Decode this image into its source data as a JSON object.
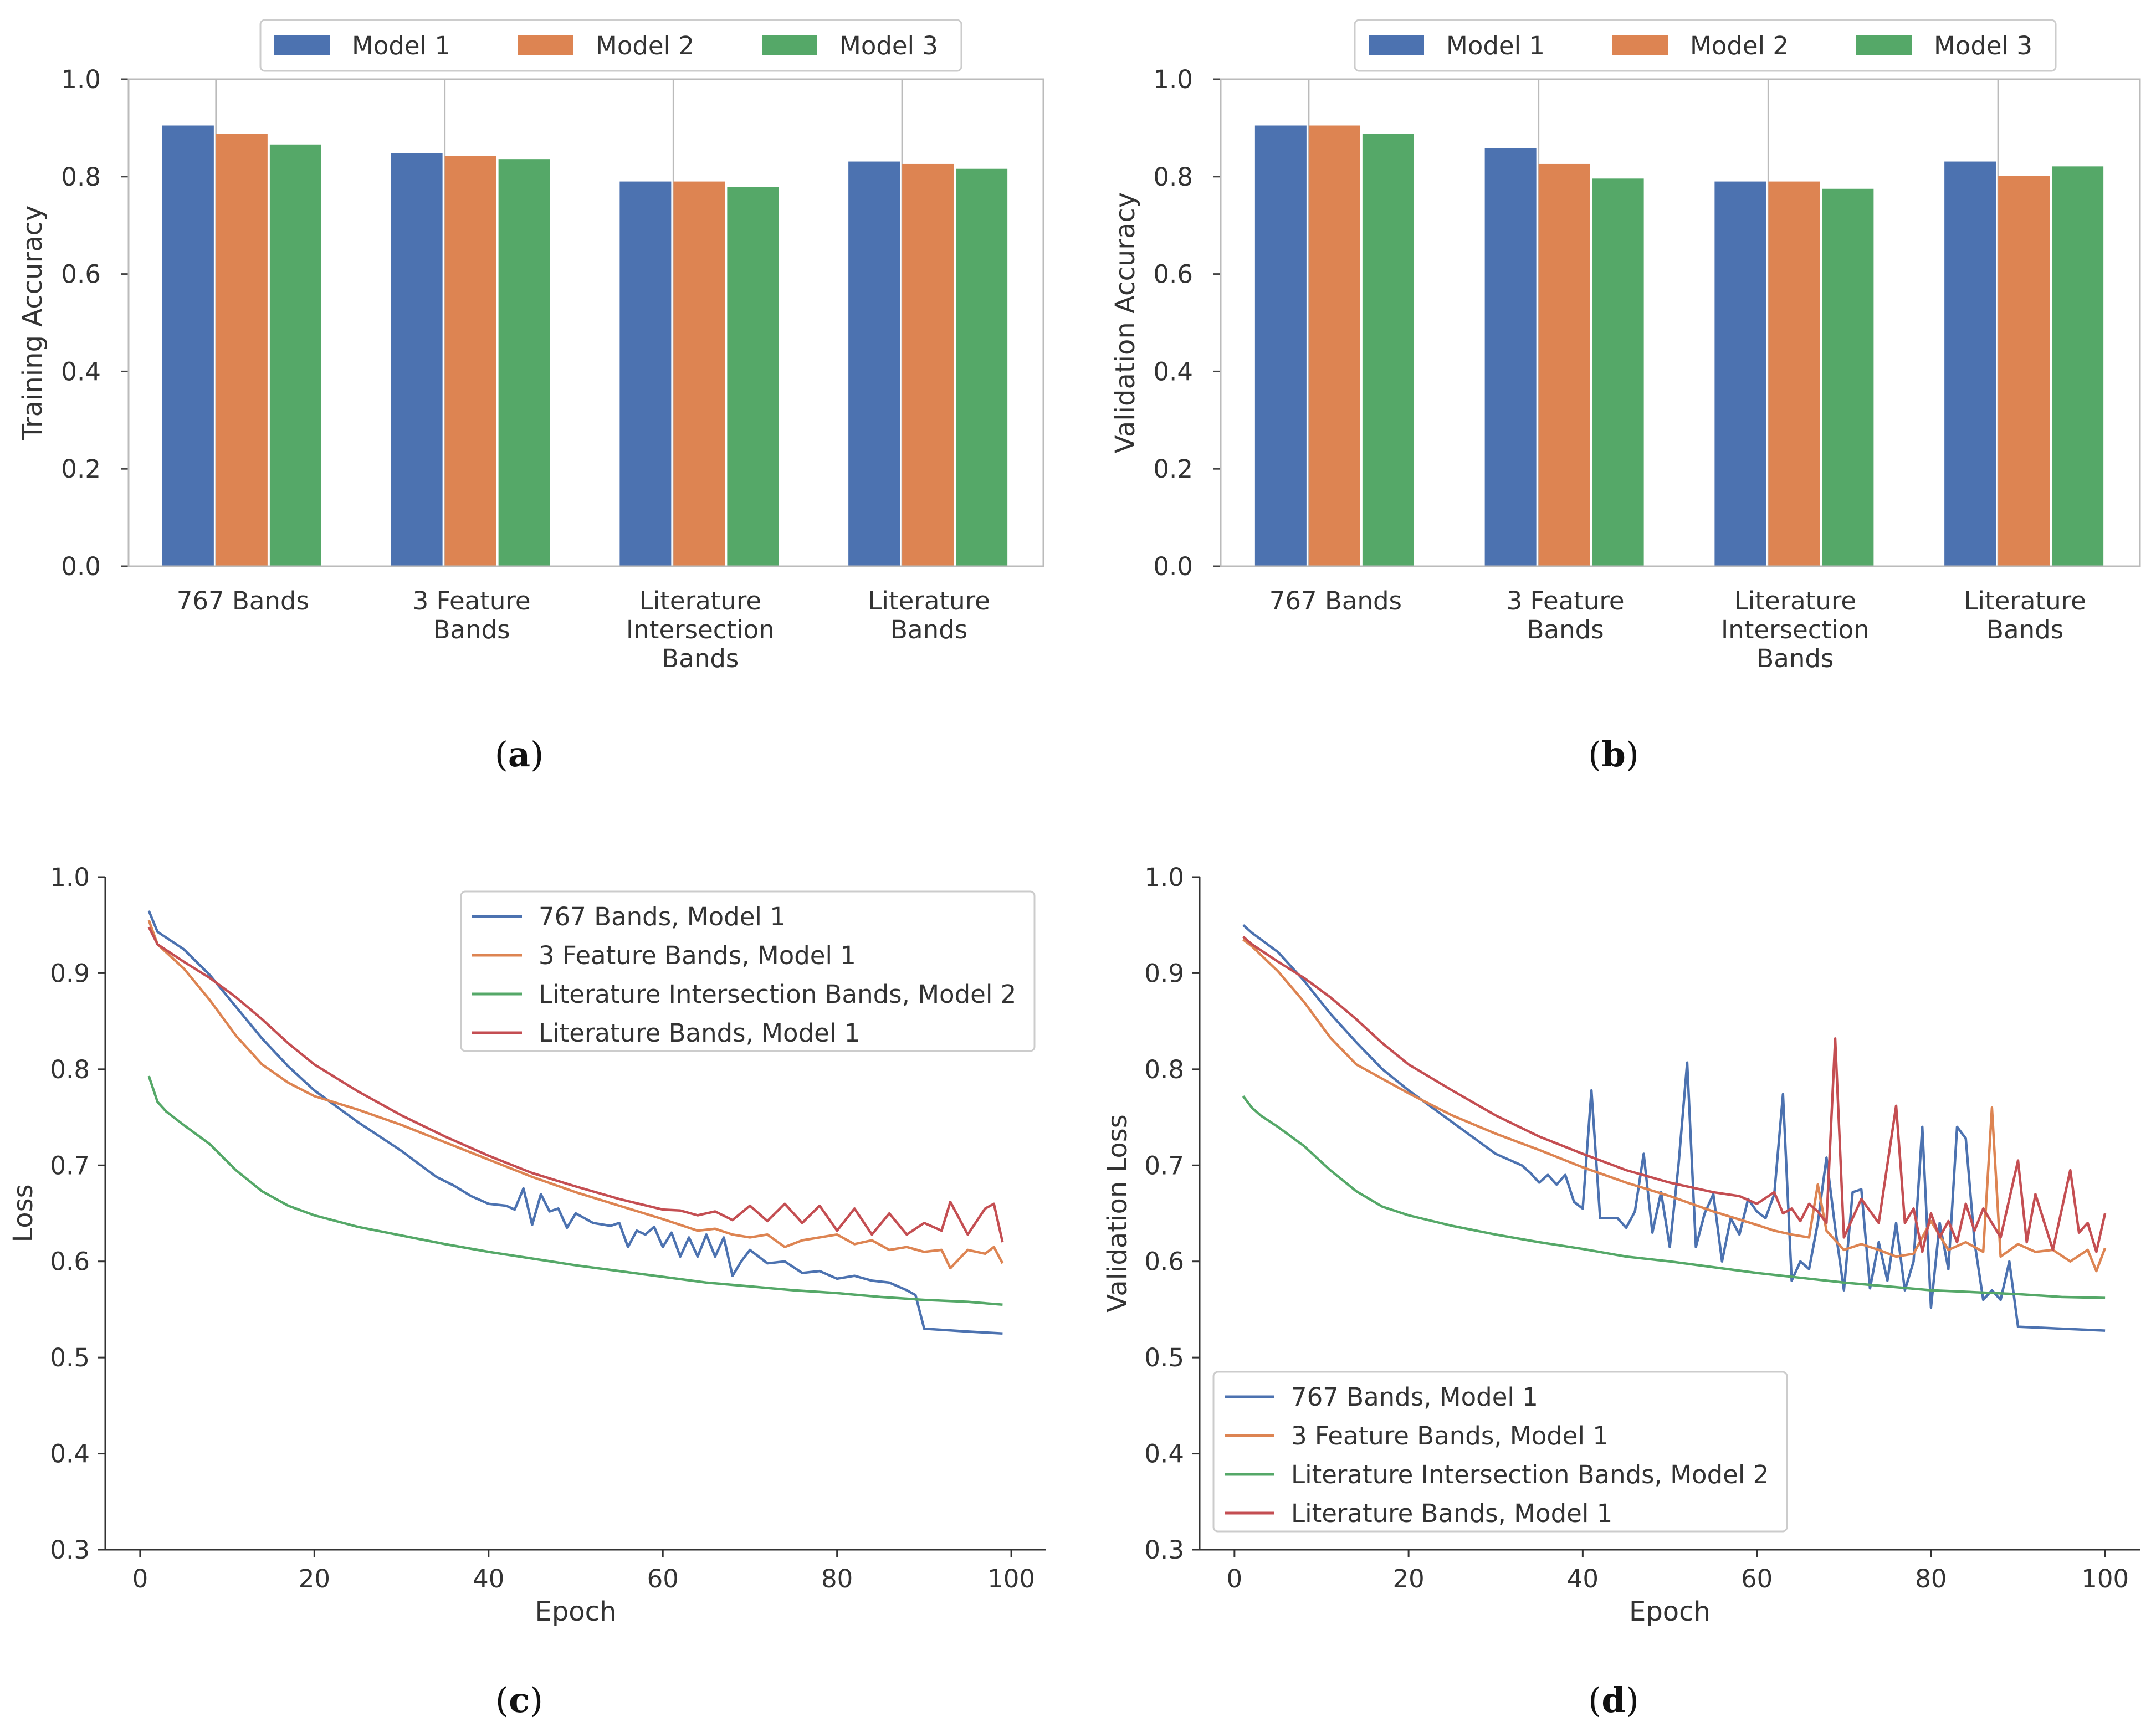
{
  "chart_data": [
    {
      "id": "a",
      "type": "bar",
      "caption_letter": "a",
      "categories": [
        [
          "767 Bands"
        ],
        [
          "3 Feature",
          "Bands"
        ],
        [
          "Literature",
          "Intersection",
          "Bands"
        ],
        [
          "Literature",
          "Bands"
        ]
      ],
      "series": [
        {
          "name": "Model 1",
          "color": "#4c72b0",
          "values": [
            0.905,
            0.848,
            0.79,
            0.831
          ]
        },
        {
          "name": "Model 2",
          "color": "#dd8452",
          "values": [
            0.888,
            0.843,
            0.79,
            0.826
          ]
        },
        {
          "name": "Model 3",
          "color": "#55a868",
          "values": [
            0.866,
            0.836,
            0.779,
            0.816
          ]
        }
      ],
      "ylabel": "Training Accuracy",
      "xlabel": "",
      "ylim": [
        0,
        1.0
      ],
      "yticks": [
        "0.0",
        "0.2",
        "0.4",
        "0.6",
        "0.8",
        "1.0"
      ],
      "legend": "top-center"
    },
    {
      "id": "b",
      "type": "bar",
      "caption_letter": "b",
      "categories": [
        [
          "767 Bands"
        ],
        [
          "3 Feature",
          "Bands"
        ],
        [
          "Literature",
          "Intersection",
          "Bands"
        ],
        [
          "Literature",
          "Bands"
        ]
      ],
      "series": [
        {
          "name": "Model 1",
          "color": "#4c72b0",
          "values": [
            0.905,
            0.858,
            0.79,
            0.831
          ]
        },
        {
          "name": "Model 2",
          "color": "#dd8452",
          "values": [
            0.905,
            0.826,
            0.79,
            0.801
          ]
        },
        {
          "name": "Model 3",
          "color": "#55a868",
          "values": [
            0.888,
            0.796,
            0.775,
            0.821
          ]
        }
      ],
      "ylabel": "Validation Accuracy",
      "xlabel": "",
      "ylim": [
        0,
        1.0
      ],
      "yticks": [
        "0.0",
        "0.2",
        "0.4",
        "0.6",
        "0.8",
        "1.0"
      ],
      "legend": "top-center"
    },
    {
      "id": "c",
      "type": "line",
      "caption_letter": "c",
      "xlabel": "Epoch",
      "ylabel": "Loss",
      "xlim": [
        -4,
        104
      ],
      "ylim": [
        0.3,
        1.0
      ],
      "xticks": [
        0,
        20,
        40,
        60,
        80,
        100
      ],
      "yticks": [
        "0.3",
        "0.4",
        "0.5",
        "0.6",
        "0.7",
        "0.8",
        "0.9",
        "1.0"
      ],
      "legend": "top-right",
      "series": [
        {
          "name": "767 Bands, Model 1",
          "color": "#4c72b0",
          "x": [
            1,
            2,
            5,
            8,
            11,
            14,
            17,
            20,
            25,
            30,
            34,
            36,
            38,
            40,
            42,
            43,
            44,
            45,
            46,
            47,
            48,
            49,
            50,
            52,
            54,
            55,
            56,
            57,
            58,
            59,
            60,
            61,
            62,
            63,
            64,
            65,
            66,
            67,
            68,
            69,
            70,
            72,
            74,
            76,
            78,
            80,
            82,
            84,
            86,
            88,
            89,
            90,
            95,
            99
          ],
          "y": [
            0.965,
            0.943,
            0.925,
            0.898,
            0.865,
            0.832,
            0.803,
            0.778,
            0.745,
            0.715,
            0.688,
            0.679,
            0.668,
            0.66,
            0.658,
            0.654,
            0.676,
            0.638,
            0.67,
            0.652,
            0.655,
            0.635,
            0.65,
            0.64,
            0.637,
            0.64,
            0.615,
            0.632,
            0.628,
            0.636,
            0.615,
            0.63,
            0.605,
            0.625,
            0.605,
            0.628,
            0.605,
            0.625,
            0.585,
            0.6,
            0.612,
            0.598,
            0.6,
            0.588,
            0.59,
            0.582,
            0.585,
            0.58,
            0.578,
            0.57,
            0.565,
            0.53,
            0.527,
            0.525
          ]
        },
        {
          "name": "3 Feature Bands, Model 1",
          "color": "#dd8452",
          "x": [
            1,
            2,
            5,
            8,
            11,
            14,
            17,
            20,
            25,
            30,
            35,
            40,
            45,
            50,
            55,
            60,
            62,
            64,
            66,
            68,
            70,
            72,
            74,
            76,
            78,
            80,
            82,
            84,
            86,
            88,
            90,
            92,
            93,
            95,
            97,
            98,
            99
          ],
          "y": [
            0.955,
            0.93,
            0.905,
            0.872,
            0.835,
            0.805,
            0.786,
            0.772,
            0.758,
            0.742,
            0.724,
            0.706,
            0.688,
            0.672,
            0.658,
            0.644,
            0.638,
            0.632,
            0.634,
            0.628,
            0.625,
            0.628,
            0.615,
            0.622,
            0.625,
            0.628,
            0.618,
            0.622,
            0.612,
            0.615,
            0.61,
            0.612,
            0.593,
            0.612,
            0.608,
            0.615,
            0.598
          ]
        },
        {
          "name": "Literature Intersection Bands, Model 2",
          "color": "#55a868",
          "x": [
            1,
            2,
            3,
            5,
            8,
            11,
            14,
            17,
            20,
            25,
            30,
            35,
            40,
            45,
            50,
            55,
            60,
            65,
            70,
            75,
            80,
            85,
            90,
            95,
            99
          ],
          "y": [
            0.793,
            0.766,
            0.756,
            0.742,
            0.722,
            0.695,
            0.673,
            0.658,
            0.648,
            0.636,
            0.627,
            0.618,
            0.61,
            0.603,
            0.596,
            0.59,
            0.584,
            0.578,
            0.574,
            0.57,
            0.567,
            0.563,
            0.56,
            0.558,
            0.555
          ]
        },
        {
          "name": "Literature Bands, Model 1",
          "color": "#c44e52",
          "x": [
            1,
            2,
            5,
            8,
            11,
            14,
            17,
            20,
            25,
            30,
            35,
            40,
            45,
            50,
            55,
            60,
            62,
            64,
            66,
            68,
            70,
            72,
            74,
            76,
            78,
            80,
            82,
            84,
            86,
            88,
            90,
            92,
            93,
            95,
            97,
            98,
            99
          ],
          "y": [
            0.948,
            0.93,
            0.912,
            0.895,
            0.875,
            0.852,
            0.827,
            0.805,
            0.777,
            0.752,
            0.73,
            0.71,
            0.692,
            0.678,
            0.665,
            0.654,
            0.653,
            0.648,
            0.652,
            0.643,
            0.658,
            0.642,
            0.66,
            0.64,
            0.658,
            0.632,
            0.655,
            0.628,
            0.65,
            0.628,
            0.64,
            0.632,
            0.662,
            0.628,
            0.655,
            0.66,
            0.62
          ]
        }
      ]
    },
    {
      "id": "d",
      "type": "line",
      "caption_letter": "d",
      "xlabel": "Epoch",
      "ylabel": "Validation Loss",
      "xlim": [
        -4,
        104
      ],
      "ylim": [
        0.3,
        1.0
      ],
      "xticks": [
        0,
        20,
        40,
        60,
        80,
        100
      ],
      "yticks": [
        "0.3",
        "0.4",
        "0.5",
        "0.6",
        "0.7",
        "0.8",
        "0.9",
        "1.0"
      ],
      "legend": "lower-left",
      "series": [
        {
          "name": "767 Bands, Model 1",
          "color": "#4c72b0",
          "x": [
            1,
            2,
            5,
            8,
            11,
            14,
            17,
            20,
            25,
            30,
            33,
            34,
            35,
            36,
            37,
            38,
            39,
            40,
            41,
            42,
            44,
            45,
            46,
            47,
            48,
            49,
            50,
            51,
            52,
            53,
            54,
            55,
            56,
            57,
            58,
            59,
            60,
            61,
            62,
            63,
            64,
            65,
            66,
            67,
            68,
            69,
            70,
            71,
            72,
            73,
            74,
            75,
            76,
            77,
            78,
            79,
            80,
            81,
            82,
            83,
            84,
            85,
            86,
            87,
            88,
            89,
            90,
            95,
            100
          ],
          "y": [
            0.95,
            0.942,
            0.922,
            0.892,
            0.858,
            0.828,
            0.8,
            0.778,
            0.745,
            0.712,
            0.7,
            0.692,
            0.682,
            0.69,
            0.68,
            0.69,
            0.662,
            0.655,
            0.778,
            0.645,
            0.645,
            0.635,
            0.652,
            0.712,
            0.63,
            0.672,
            0.615,
            0.7,
            0.807,
            0.615,
            0.65,
            0.67,
            0.6,
            0.645,
            0.628,
            0.665,
            0.652,
            0.645,
            0.67,
            0.774,
            0.58,
            0.6,
            0.592,
            0.64,
            0.708,
            0.635,
            0.57,
            0.672,
            0.675,
            0.572,
            0.62,
            0.58,
            0.64,
            0.57,
            0.6,
            0.74,
            0.552,
            0.64,
            0.592,
            0.74,
            0.728,
            0.62,
            0.56,
            0.57,
            0.56,
            0.6,
            0.532,
            0.53,
            0.528
          ]
        },
        {
          "name": "3 Feature Bands, Model 1",
          "color": "#dd8452",
          "x": [
            1,
            2,
            5,
            8,
            11,
            14,
            17,
            20,
            25,
            30,
            35,
            40,
            45,
            50,
            55,
            60,
            62,
            64,
            66,
            67,
            68,
            70,
            72,
            74,
            76,
            78,
            80,
            82,
            84,
            86,
            87,
            88,
            90,
            92,
            94,
            96,
            98,
            99,
            100
          ],
          "y": [
            0.935,
            0.928,
            0.902,
            0.87,
            0.833,
            0.805,
            0.79,
            0.775,
            0.752,
            0.733,
            0.716,
            0.698,
            0.682,
            0.668,
            0.652,
            0.638,
            0.632,
            0.628,
            0.625,
            0.68,
            0.632,
            0.612,
            0.618,
            0.612,
            0.605,
            0.608,
            0.642,
            0.612,
            0.62,
            0.61,
            0.76,
            0.605,
            0.618,
            0.61,
            0.612,
            0.6,
            0.612,
            0.59,
            0.614
          ]
        },
        {
          "name": "Literature Intersection Bands, Model 2",
          "color": "#55a868",
          "x": [
            1,
            2,
            3,
            5,
            8,
            11,
            14,
            17,
            20,
            25,
            30,
            35,
            40,
            45,
            50,
            55,
            60,
            65,
            70,
            75,
            80,
            85,
            90,
            95,
            100
          ],
          "y": [
            0.772,
            0.76,
            0.752,
            0.74,
            0.72,
            0.695,
            0.673,
            0.657,
            0.648,
            0.637,
            0.628,
            0.62,
            0.613,
            0.605,
            0.6,
            0.594,
            0.588,
            0.583,
            0.578,
            0.574,
            0.57,
            0.568,
            0.566,
            0.563,
            0.562
          ]
        },
        {
          "name": "Literature Bands, Model 1",
          "color": "#c44e52",
          "x": [
            1,
            2,
            5,
            8,
            11,
            14,
            17,
            20,
            25,
            30,
            35,
            40,
            45,
            50,
            55,
            58,
            60,
            62,
            63,
            64,
            65,
            66,
            67,
            68,
            69,
            70,
            72,
            74,
            76,
            77,
            78,
            79,
            80,
            81,
            82,
            83,
            84,
            85,
            86,
            88,
            90,
            91,
            92,
            94,
            96,
            97,
            98,
            99,
            100
          ],
          "y": [
            0.938,
            0.93,
            0.912,
            0.895,
            0.875,
            0.852,
            0.827,
            0.805,
            0.778,
            0.752,
            0.73,
            0.712,
            0.695,
            0.682,
            0.672,
            0.668,
            0.66,
            0.672,
            0.65,
            0.655,
            0.642,
            0.66,
            0.652,
            0.64,
            0.832,
            0.625,
            0.665,
            0.64,
            0.762,
            0.64,
            0.655,
            0.61,
            0.65,
            0.625,
            0.642,
            0.62,
            0.66,
            0.632,
            0.655,
            0.625,
            0.705,
            0.62,
            0.67,
            0.612,
            0.695,
            0.63,
            0.64,
            0.61,
            0.65
          ]
        }
      ]
    }
  ]
}
